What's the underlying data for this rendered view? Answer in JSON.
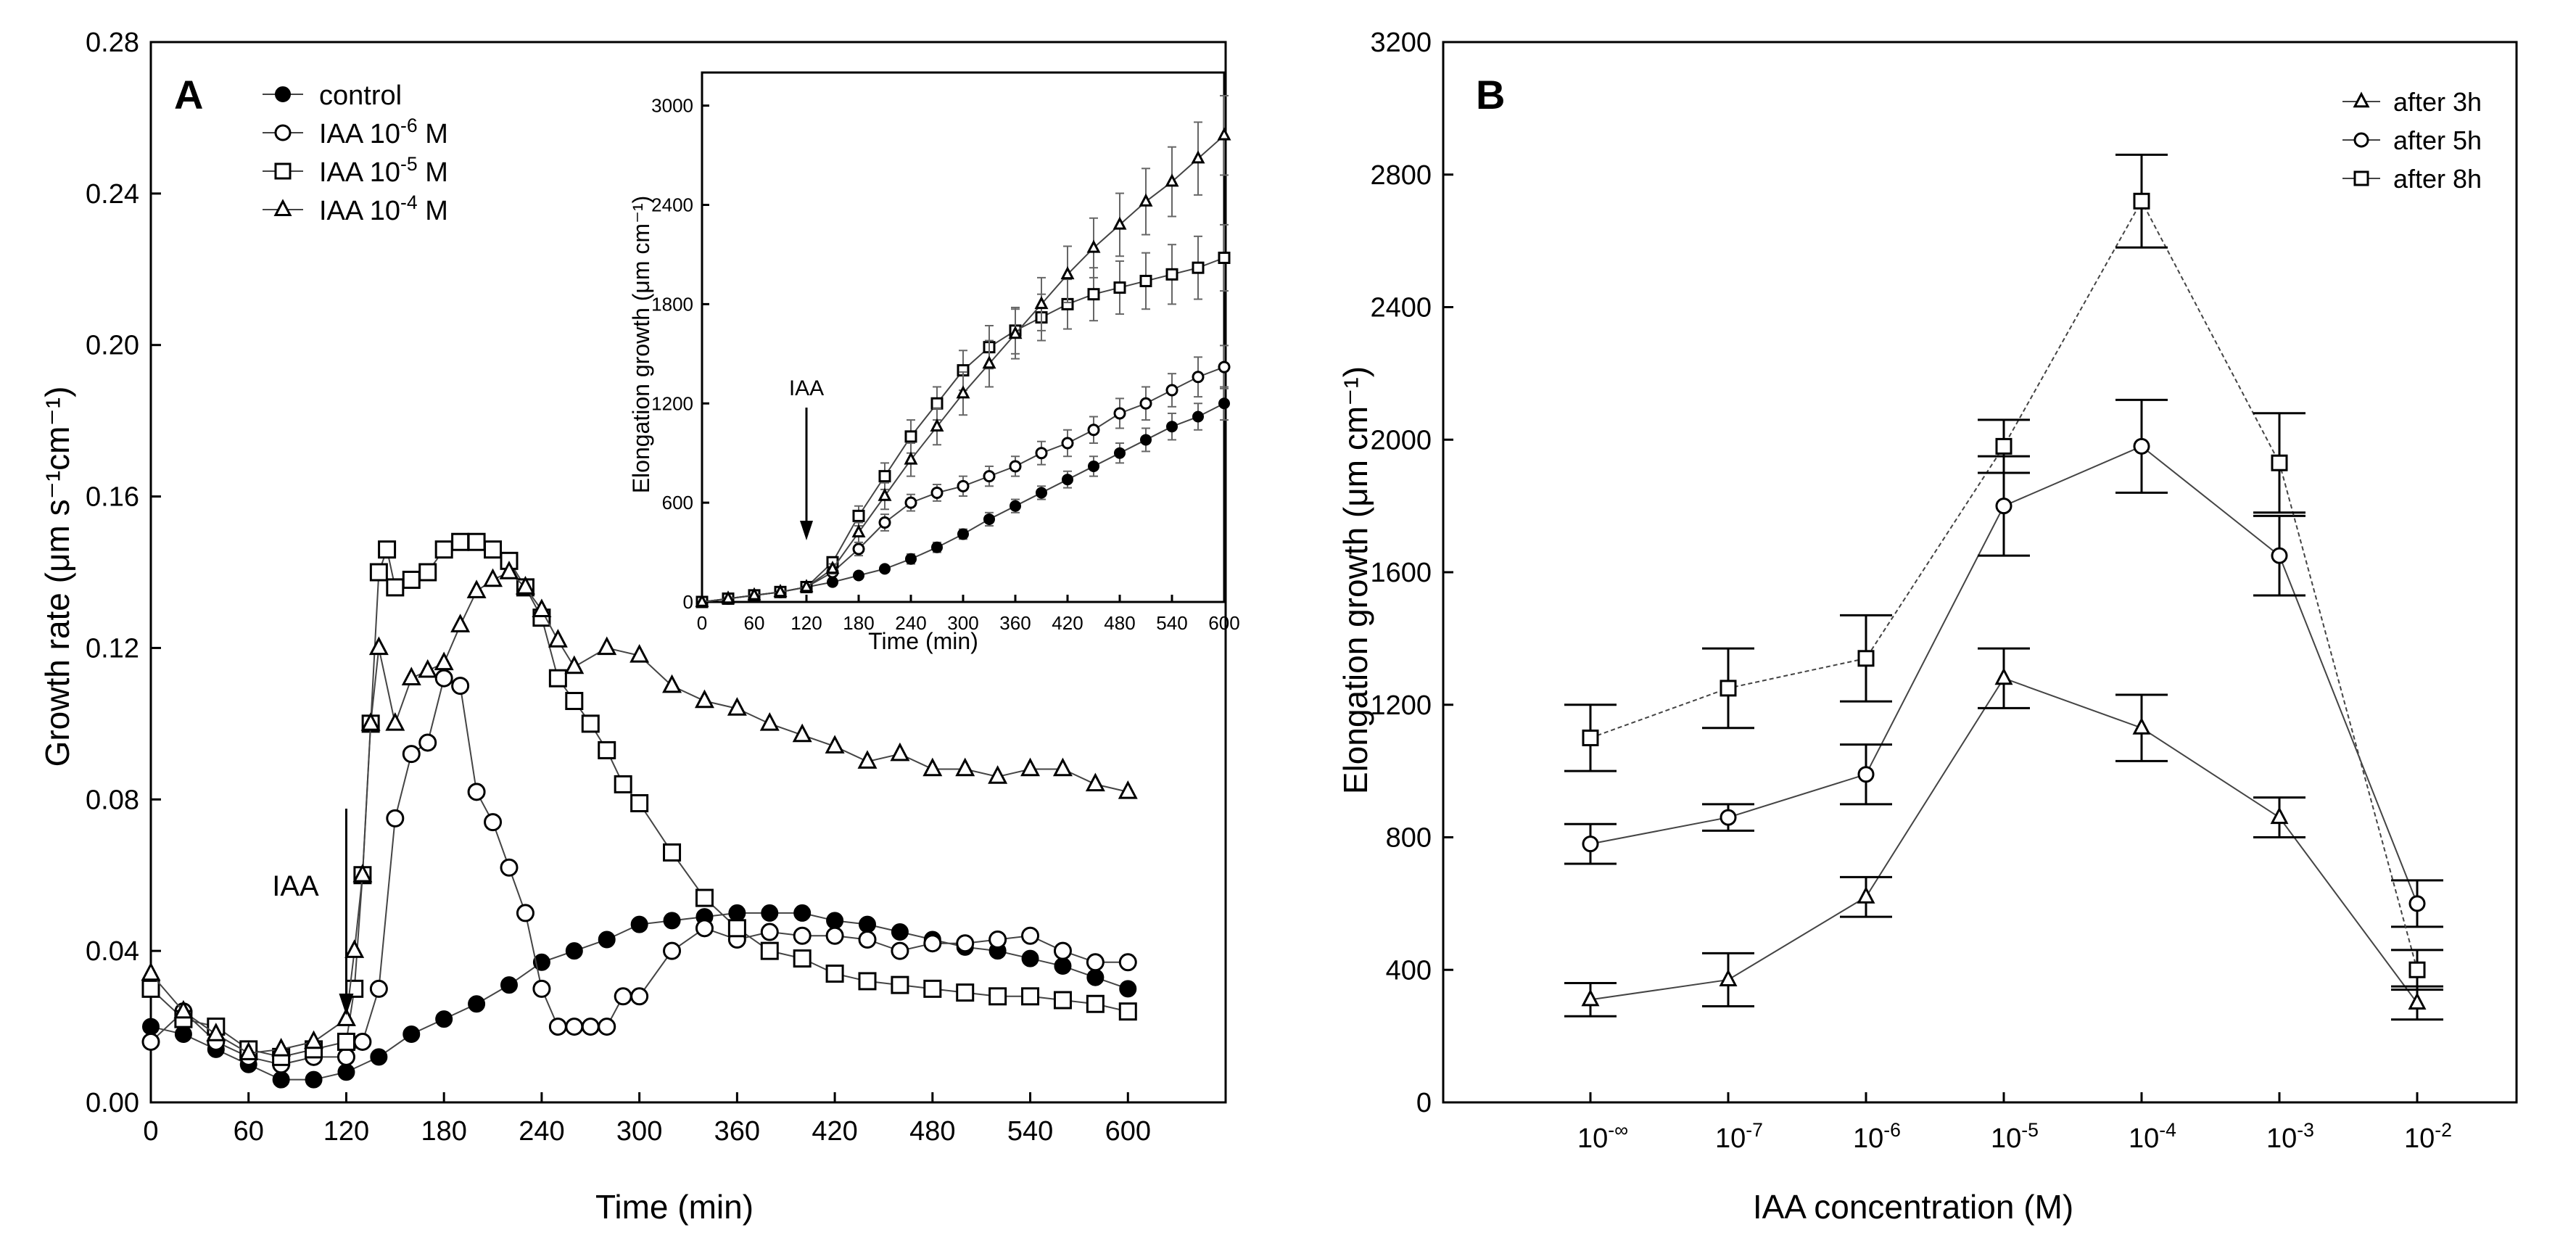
{
  "chart_data": [
    {
      "panel_label": "A",
      "type": "scatter",
      "xlabel": "Time (min)",
      "ylabel": "Growth rate (μm s⁻¹cm⁻¹)",
      "xlim": [
        0,
        660
      ],
      "ylim": [
        0,
        0.28
      ],
      "xticks": [
        "0",
        "60",
        "120",
        "180",
        "240",
        "300",
        "360",
        "420",
        "480",
        "540",
        "600"
      ],
      "yticks": [
        "0.00",
        "0.04",
        "0.08",
        "0.12",
        "0.16",
        "0.20",
        "0.24",
        "0.28"
      ],
      "annotation": "IAA",
      "annotation_x": 120,
      "legend_position": "top-left",
      "legend": [
        {
          "label_main": "control",
          "label_sup": "",
          "label_tail": "",
          "marker": "filled-circle"
        },
        {
          "label_main": "IAA 10",
          "label_sup": "-6",
          "label_tail": " M",
          "marker": "open-circle"
        },
        {
          "label_main": "IAA 10",
          "label_sup": "-5",
          "label_tail": " M",
          "marker": "open-square"
        },
        {
          "label_main": "IAA 10",
          "label_sup": "-4",
          "label_tail": " M",
          "marker": "open-triangle"
        }
      ],
      "series": [
        {
          "name": "control",
          "marker": "filled-circle",
          "x": [
            0,
            20,
            40,
            60,
            80,
            100,
            120,
            140,
            160,
            180,
            200,
            220,
            240,
            260,
            280,
            300,
            320,
            340,
            360,
            380,
            400,
            420,
            440,
            460,
            480,
            500,
            520,
            540,
            560,
            580,
            600
          ],
          "y": [
            0.02,
            0.018,
            0.014,
            0.01,
            0.006,
            0.006,
            0.008,
            0.012,
            0.018,
            0.022,
            0.026,
            0.031,
            0.037,
            0.04,
            0.043,
            0.047,
            0.048,
            0.049,
            0.05,
            0.05,
            0.05,
            0.048,
            0.047,
            0.045,
            0.043,
            0.041,
            0.04,
            0.038,
            0.036,
            0.033,
            0.03
          ]
        },
        {
          "name": "IAA 10-6 M",
          "marker": "open-circle",
          "x": [
            0,
            20,
            40,
            60,
            80,
            100,
            120,
            130,
            140,
            150,
            160,
            170,
            180,
            190,
            200,
            210,
            220,
            230,
            240,
            250,
            260,
            270,
            280,
            290,
            300,
            320,
            340,
            360,
            380,
            400,
            420,
            440,
            460,
            480,
            500,
            520,
            540,
            560,
            580,
            600
          ],
          "y": [
            0.016,
            0.024,
            0.016,
            0.012,
            0.01,
            0.012,
            0.012,
            0.016,
            0.03,
            0.075,
            0.092,
            0.095,
            0.112,
            0.11,
            0.082,
            0.074,
            0.062,
            0.05,
            0.03,
            0.02,
            0.02,
            0.02,
            0.02,
            0.028,
            0.028,
            0.04,
            0.046,
            0.043,
            0.045,
            0.044,
            0.044,
            0.043,
            0.04,
            0.042,
            0.042,
            0.043,
            0.044,
            0.04,
            0.037,
            0.037
          ]
        },
        {
          "name": "IAA 10-5 M",
          "marker": "open-square",
          "x": [
            0,
            20,
            40,
            60,
            80,
            100,
            120,
            125,
            130,
            135,
            140,
            145,
            150,
            160,
            170,
            180,
            190,
            200,
            210,
            220,
            230,
            240,
            250,
            260,
            270,
            280,
            290,
            300,
            320,
            340,
            360,
            380,
            400,
            420,
            440,
            460,
            480,
            500,
            520,
            540,
            560,
            580,
            600
          ],
          "y": [
            0.03,
            0.022,
            0.02,
            0.014,
            0.012,
            0.014,
            0.016,
            0.03,
            0.06,
            0.1,
            0.14,
            0.146,
            0.136,
            0.138,
            0.14,
            0.146,
            0.148,
            0.148,
            0.146,
            0.143,
            0.136,
            0.128,
            0.112,
            0.106,
            0.1,
            0.093,
            0.084,
            0.079,
            0.066,
            0.054,
            0.046,
            0.04,
            0.038,
            0.034,
            0.032,
            0.031,
            0.03,
            0.029,
            0.028,
            0.028,
            0.027,
            0.026,
            0.024
          ]
        },
        {
          "name": "IAA 10-4 M",
          "marker": "open-triangle",
          "x": [
            0,
            20,
            40,
            60,
            80,
            100,
            120,
            125,
            130,
            135,
            140,
            150,
            160,
            170,
            180,
            190,
            200,
            210,
            220,
            230,
            240,
            250,
            260,
            280,
            300,
            320,
            340,
            360,
            380,
            400,
            420,
            440,
            460,
            480,
            500,
            520,
            540,
            560,
            580,
            600
          ],
          "y": [
            0.034,
            0.024,
            0.018,
            0.013,
            0.014,
            0.016,
            0.022,
            0.04,
            0.06,
            0.1,
            0.12,
            0.1,
            0.112,
            0.114,
            0.116,
            0.126,
            0.135,
            0.138,
            0.14,
            0.136,
            0.13,
            0.122,
            0.115,
            0.12,
            0.118,
            0.11,
            0.106,
            0.104,
            0.1,
            0.097,
            0.094,
            0.09,
            0.092,
            0.088,
            0.088,
            0.086,
            0.088,
            0.088,
            0.084,
            0.082
          ]
        }
      ],
      "inset": {
        "type": "line",
        "xlabel": "Time (min)",
        "ylabel": "Elongation growth (μm cm⁻¹)",
        "xlim": [
          0,
          600
        ],
        "ylim": [
          0,
          3200
        ],
        "xticks": [
          "0",
          "60",
          "120",
          "180",
          "240",
          "300",
          "360",
          "420",
          "480",
          "540",
          "600"
        ],
        "yticks": [
          "0",
          "600",
          "1200",
          "1800",
          "2400",
          "3000"
        ],
        "annotation": "IAA",
        "annotation_x": 120,
        "series": [
          {
            "name": "control",
            "marker": "filled-circle",
            "x": [
              0,
              30,
              60,
              90,
              120,
              150,
              180,
              210,
              240,
              270,
              300,
              330,
              360,
              390,
              420,
              450,
              480,
              510,
              540,
              570,
              600
            ],
            "y": [
              0,
              20,
              40,
              60,
              90,
              120,
              160,
              200,
              260,
              330,
              410,
              500,
              580,
              660,
              740,
              820,
              900,
              980,
              1060,
              1120,
              1200
            ],
            "err": [
              0,
              0,
              0,
              0,
              0,
              10,
              20,
              20,
              30,
              30,
              30,
              40,
              40,
              40,
              50,
              60,
              60,
              70,
              80,
              80,
              100
            ]
          },
          {
            "name": "IAA 10-6 M",
            "marker": "open-circle",
            "x": [
              0,
              30,
              60,
              90,
              120,
              150,
              180,
              210,
              240,
              270,
              300,
              330,
              360,
              390,
              420,
              450,
              480,
              510,
              540,
              570,
              600
            ],
            "y": [
              0,
              20,
              40,
              60,
              90,
              180,
              320,
              480,
              600,
              660,
              700,
              760,
              820,
              900,
              960,
              1040,
              1140,
              1200,
              1280,
              1360,
              1420
            ],
            "err": [
              0,
              0,
              0,
              0,
              0,
              20,
              40,
              50,
              50,
              50,
              60,
              60,
              60,
              70,
              80,
              80,
              90,
              100,
              100,
              120,
              130
            ]
          },
          {
            "name": "IAA 10-5 M",
            "marker": "open-square",
            "x": [
              0,
              30,
              60,
              90,
              120,
              150,
              180,
              210,
              240,
              270,
              300,
              330,
              360,
              390,
              420,
              450,
              480,
              510,
              540,
              570,
              600
            ],
            "y": [
              0,
              20,
              40,
              60,
              90,
              240,
              520,
              760,
              1000,
              1200,
              1400,
              1540,
              1640,
              1720,
              1800,
              1860,
              1900,
              1940,
              1980,
              2020,
              2080
            ],
            "err": [
              0,
              0,
              0,
              0,
              0,
              30,
              60,
              80,
              100,
              100,
              120,
              130,
              140,
              140,
              150,
              160,
              160,
              170,
              180,
              190,
              200
            ]
          },
          {
            "name": "IAA 10-4 M",
            "marker": "open-triangle",
            "x": [
              0,
              30,
              60,
              90,
              120,
              150,
              180,
              210,
              240,
              270,
              300,
              330,
              360,
              390,
              420,
              450,
              480,
              510,
              540,
              570,
              600
            ],
            "y": [
              0,
              20,
              40,
              60,
              90,
              200,
              420,
              640,
              860,
              1060,
              1260,
              1440,
              1620,
              1800,
              1980,
              2140,
              2280,
              2420,
              2540,
              2680,
              2820
            ],
            "err": [
              0,
              0,
              0,
              0,
              0,
              30,
              60,
              80,
              100,
              110,
              130,
              140,
              150,
              160,
              170,
              180,
              190,
              200,
              210,
              220,
              240
            ]
          }
        ]
      }
    },
    {
      "panel_label": "B",
      "type": "line",
      "xlabel": "IAA concentration (M)",
      "ylabel": "Elongation growth (μm cm⁻¹)",
      "ylim": [
        0,
        3200
      ],
      "yticks": [
        "0",
        "400",
        "800",
        "1200",
        "1600",
        "2000",
        "2400",
        "2800",
        "3200"
      ],
      "categories": [
        {
          "base": "10",
          "sup": "-∞"
        },
        {
          "base": "10",
          "sup": "-7"
        },
        {
          "base": "10",
          "sup": "-6"
        },
        {
          "base": "10",
          "sup": "-5"
        },
        {
          "base": "10",
          "sup": "-4"
        },
        {
          "base": "10",
          "sup": "-3"
        },
        {
          "base": "10",
          "sup": "-2"
        }
      ],
      "legend_position": "top-right",
      "series": [
        {
          "name": "after 3h",
          "marker": "open-triangle",
          "values": [
            310,
            370,
            620,
            1280,
            1130,
            860,
            300
          ],
          "err": [
            50,
            80,
            60,
            90,
            100,
            60,
            50
          ]
        },
        {
          "name": "after 5h",
          "marker": "open-circle",
          "values": [
            780,
            860,
            990,
            1800,
            1980,
            1650,
            600
          ],
          "err": [
            60,
            40,
            90,
            150,
            140,
            120,
            70
          ]
        },
        {
          "name": "after 8h",
          "marker": "open-square",
          "values": [
            1100,
            1250,
            1340,
            1980,
            2720,
            1930,
            400
          ],
          "err": [
            100,
            120,
            130,
            80,
            140,
            150,
            60
          ]
        }
      ]
    }
  ]
}
